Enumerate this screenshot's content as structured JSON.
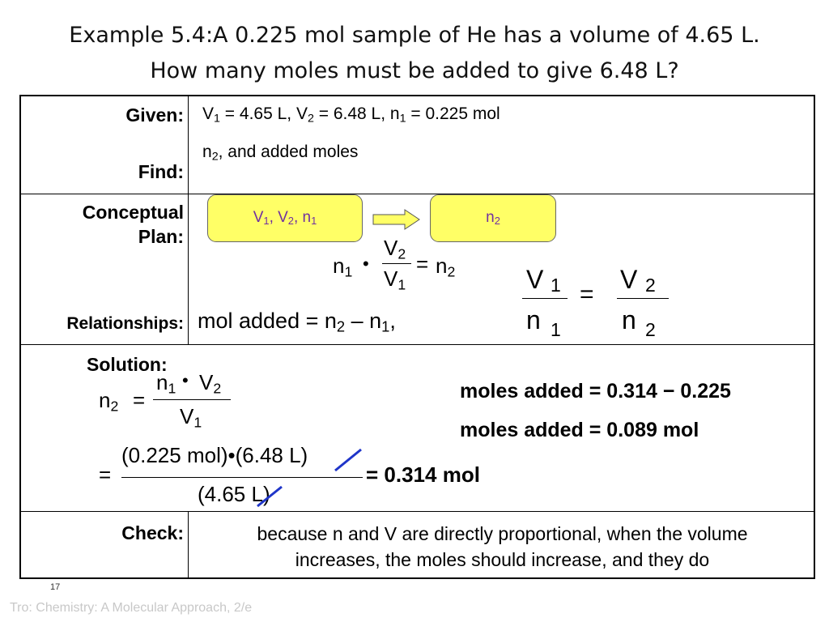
{
  "title": {
    "line1": "Example 5.4:A 0.225 mol sample of He has a volume of 4.65 L.",
    "line2": "How many moles must be added to give 6.48 L?"
  },
  "given": {
    "label": "Given:",
    "v1": "V",
    "v1_sub": "1",
    "v1_val": " = 4.65 L, ",
    "v2": "V",
    "v2_sub": "2",
    "v2_val": " = 6.48 L, ",
    "n1": "n",
    "n1_sub": "1",
    "n1_val": " = 0.225 mol"
  },
  "find": {
    "label": "Find:",
    "n2": "n",
    "n2_sub": "2",
    "rest": ", and added moles"
  },
  "plan": {
    "label_line1": "Conceptual",
    "label_line2": "Plan:",
    "start_box": {
      "v1": "V",
      "v1_sub": "1",
      "sep1": ", V",
      "v2_sub": "2",
      "sep2": ", n",
      "n1_sub": "1"
    },
    "end_box": {
      "n": "n",
      "n_sub": "2"
    },
    "arrow_color": "#ffff66",
    "box_color": "#ffff66",
    "box_text_color": "#7030a0"
  },
  "relationships": {
    "label": "Relationships:",
    "text": "mol added = n",
    "sub2": "2",
    "minus": " – n",
    "sub1": "1",
    "tail": ","
  },
  "solution": {
    "label": "Solution:"
  },
  "check": {
    "label": "Check:",
    "line1": "because n and V are directly proportional, when the volume",
    "line2": "increases, the moles should increase, and they do"
  },
  "math": {
    "n": "n",
    "V": "V",
    "one": "1",
    "two": "2",
    "eq": "=",
    "dot": "•",
    "num_sol": "(0.225 mol)•(6.48 L)",
    "den_sol": "(4.65 L)",
    "result": "= 0.314 mol",
    "moles_added_1": "moles added = 0.314 − 0.225",
    "moles_added_2": "moles added = 0.089 mol",
    "cancel_color": "#1f35c9"
  },
  "footer": {
    "slide_number": "17",
    "source": "Tro: Chemistry: A Molecular Approach, 2/e"
  }
}
